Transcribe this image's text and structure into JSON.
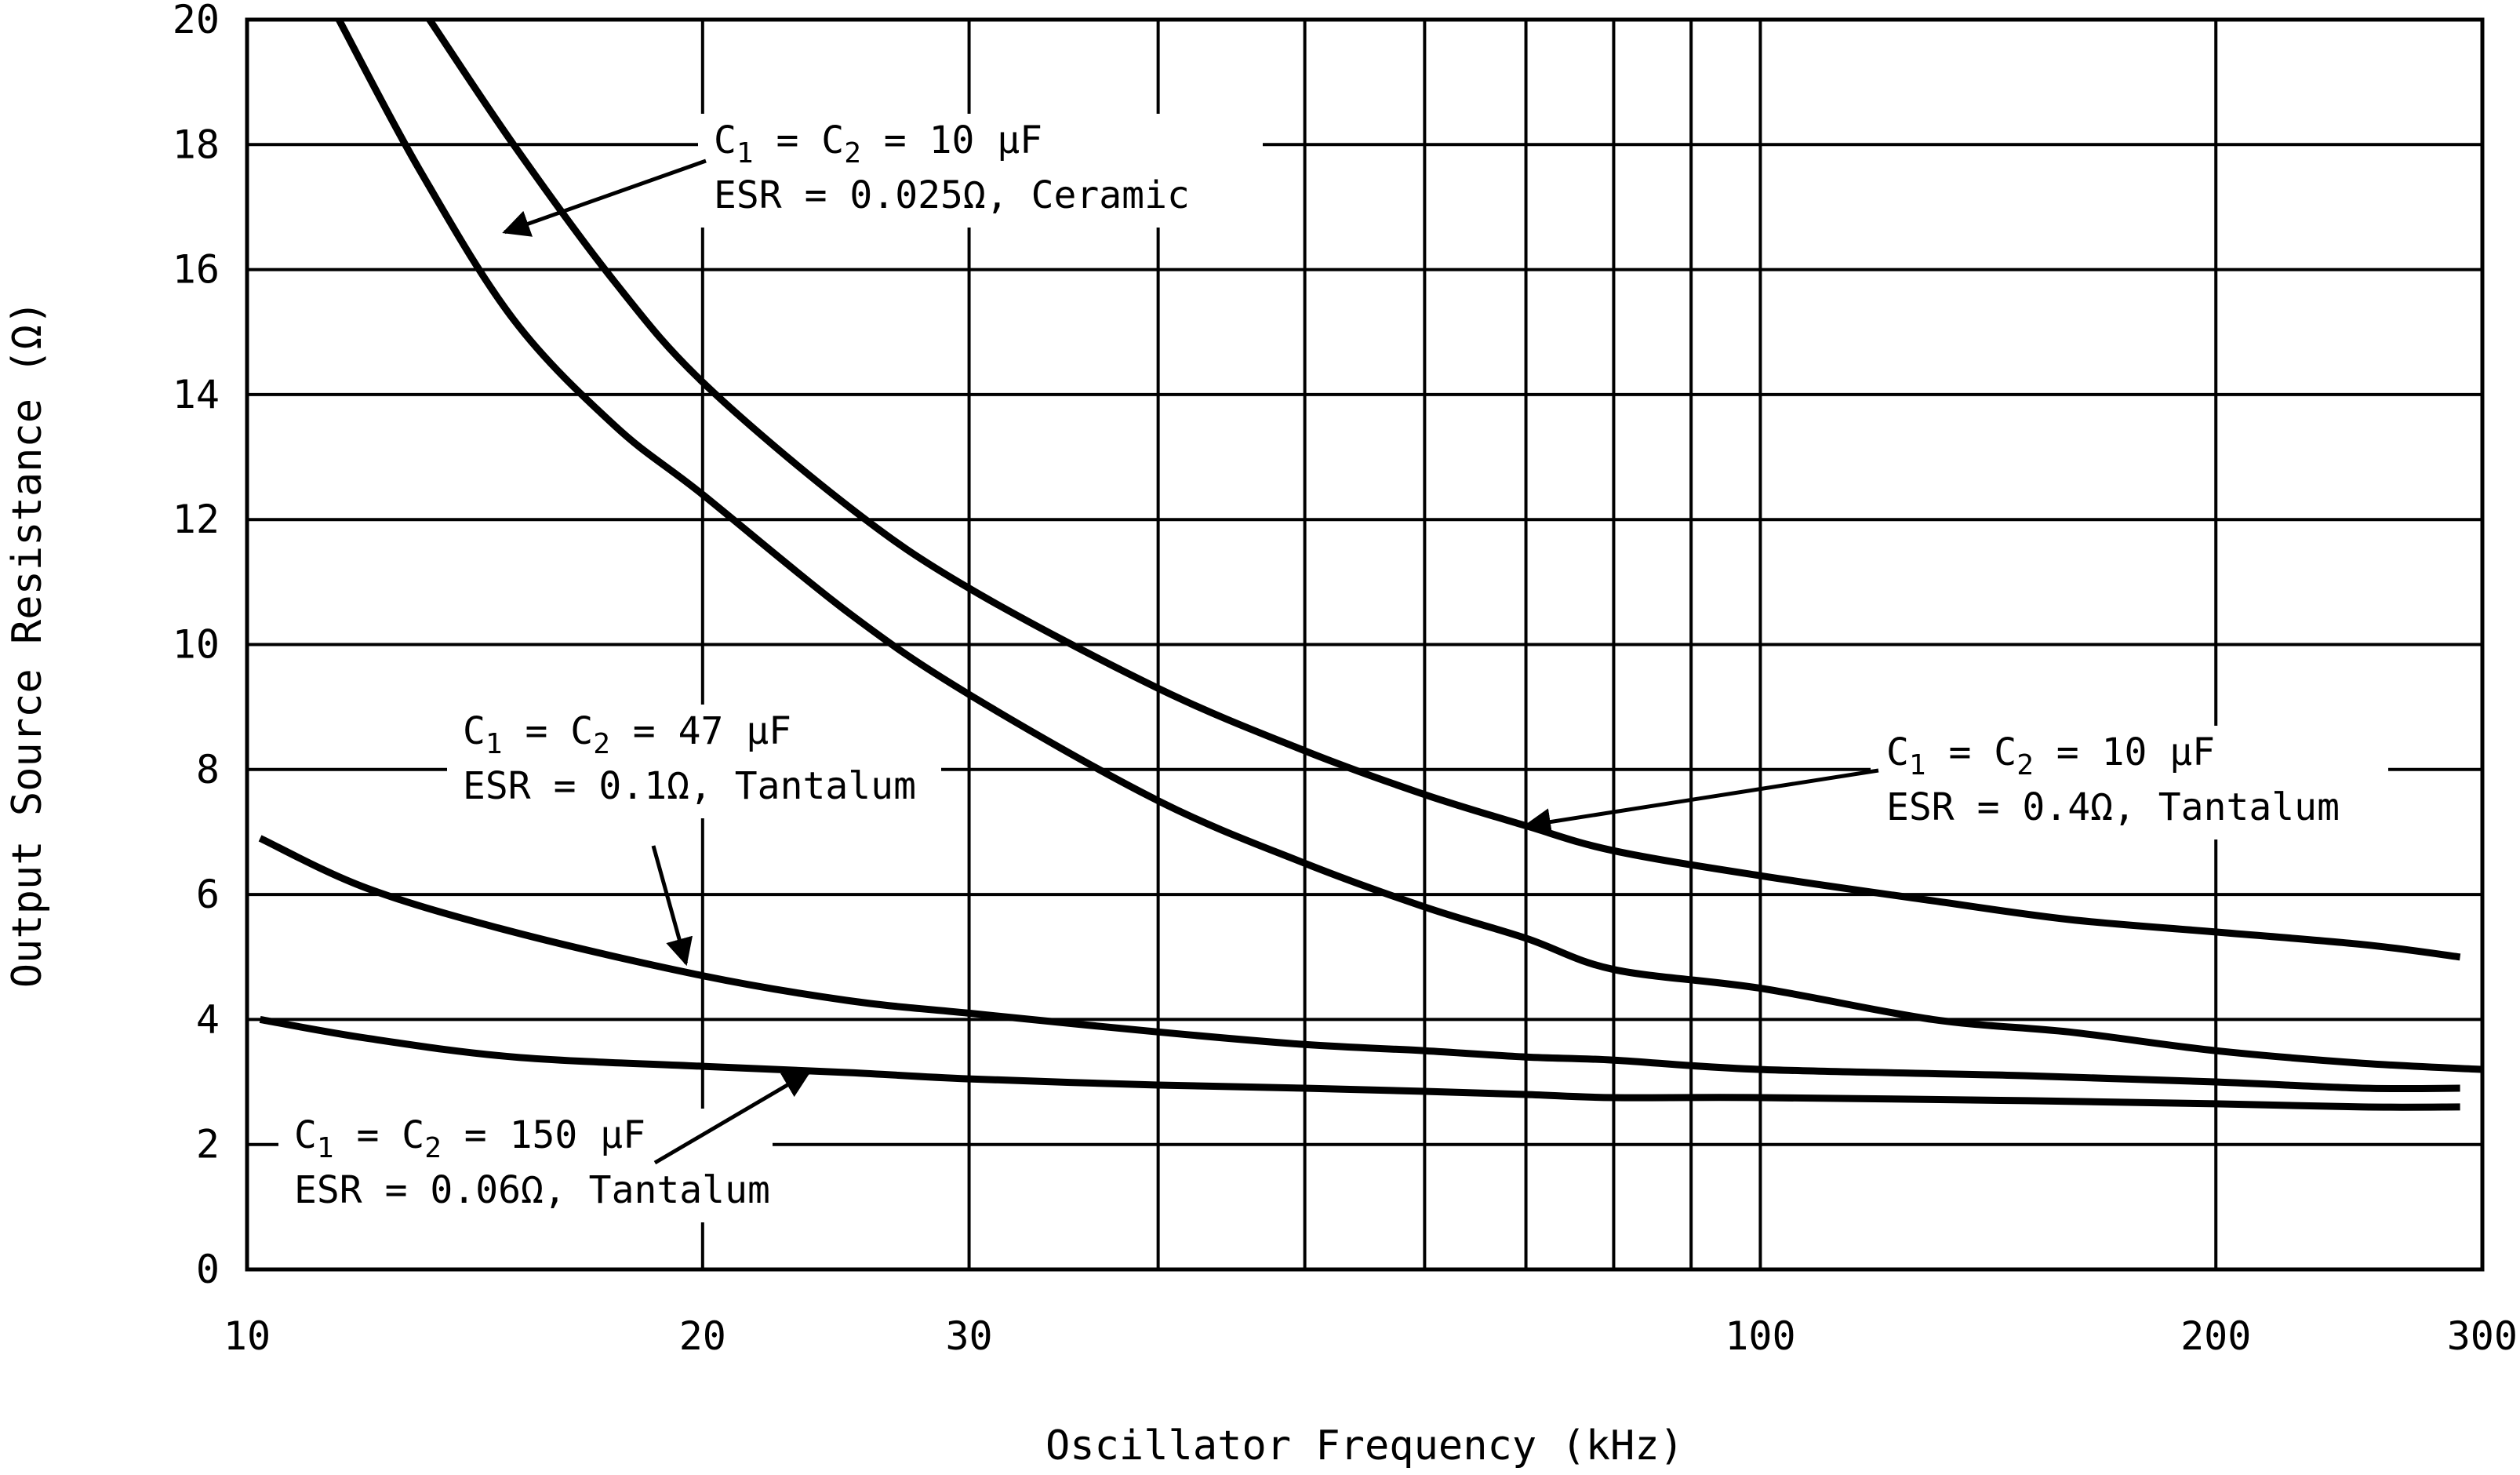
{
  "chart_data": {
    "type": "line",
    "title": "",
    "xlabel": "Oscillator Frequency (kHz)",
    "ylabel": "Output Source Resistance (Ω)",
    "x_scale": "log",
    "xlim": [
      10,
      300
    ],
    "ylim": [
      0,
      20
    ],
    "grid": true,
    "x_gridlines": [
      20,
      30,
      40,
      50,
      60,
      70,
      80,
      90,
      100,
      200
    ],
    "x_ticks": [
      {
        "value": 10,
        "label": "10"
      },
      {
        "value": 20,
        "label": "20"
      },
      {
        "value": 30,
        "label": "30"
      },
      {
        "value": 100,
        "label": "100"
      },
      {
        "value": 200,
        "label": "200"
      },
      {
        "value": 300,
        "label": "300"
      }
    ],
    "y_ticks": [
      {
        "value": 0,
        "label": "0"
      },
      {
        "value": 2,
        "label": "2"
      },
      {
        "value": 4,
        "label": "4"
      },
      {
        "value": 6,
        "label": "6"
      },
      {
        "value": 8,
        "label": "8"
      },
      {
        "value": 10,
        "label": "10"
      },
      {
        "value": 12,
        "label": "12"
      },
      {
        "value": 14,
        "label": "14"
      },
      {
        "value": 16,
        "label": "16"
      },
      {
        "value": 18,
        "label": "18"
      },
      {
        "value": 20,
        "label": "20"
      }
    ],
    "series": [
      {
        "name": "C1 = C2 = 10 µF, ESR = 0.025Ω, Ceramic",
        "x": [
          11.5,
          13,
          15,
          17.5,
          20,
          25,
          30,
          40,
          50,
          60,
          70,
          80,
          100,
          130,
          160,
          200,
          250,
          300
        ],
        "y": [
          20,
          17.6,
          15.2,
          13.5,
          12.4,
          10.5,
          9.2,
          7.5,
          6.5,
          5.8,
          5.3,
          4.8,
          4.5,
          4.0,
          3.8,
          3.5,
          3.3,
          3.2
        ]
      },
      {
        "name": "C1 = C2 = 10 µF, ESR = 0.4Ω, Tantalum",
        "x": [
          13.2,
          15,
          17.5,
          20,
          25,
          30,
          40,
          50,
          60,
          70,
          80,
          100,
          130,
          160,
          200,
          250,
          290
        ],
        "y": [
          20,
          18,
          15.8,
          14.2,
          12.2,
          10.9,
          9.3,
          8.3,
          7.6,
          7.1,
          6.7,
          6.3,
          5.9,
          5.6,
          5.4,
          5.2,
          5.0
        ]
      },
      {
        "name": "C1 = C2 = 47 µF, ESR = 0.1Ω, Tantalum",
        "x": [
          10.2,
          12,
          15,
          20,
          25,
          30,
          40,
          50,
          60,
          70,
          80,
          100,
          150,
          200,
          250,
          290
        ],
        "y": [
          6.9,
          6.1,
          5.4,
          4.7,
          4.3,
          4.1,
          3.8,
          3.6,
          3.5,
          3.4,
          3.35,
          3.2,
          3.1,
          3.0,
          2.9,
          2.9
        ]
      },
      {
        "name": "C1 = C2 = 150 µF, ESR = 0.06Ω, Tantalum",
        "x": [
          10.2,
          12,
          15,
          20,
          25,
          30,
          40,
          50,
          60,
          70,
          80,
          100,
          150,
          200,
          250,
          290
        ],
        "y": [
          4.0,
          3.7,
          3.4,
          3.25,
          3.15,
          3.05,
          2.95,
          2.9,
          2.85,
          2.8,
          2.75,
          2.75,
          2.7,
          2.65,
          2.6,
          2.6
        ]
      }
    ],
    "annotations": [
      {
        "c_label": "C",
        "c_sub": "1",
        "c2_label": " = C",
        "c2_sub": "2",
        "value": " = 10 µF",
        "esr": "ESR = 0.025Ω, Ceramic",
        "arrow_x": 14.8,
        "arrow_y": 16.6
      },
      {
        "c_label": "C",
        "c_sub": "1",
        "c2_label": " = C",
        "c2_sub": "2",
        "value": " = 10 µF",
        "esr": "ESR = 0.4Ω, Tantalum",
        "arrow_x": 70,
        "arrow_y": 7.1
      },
      {
        "c_label": "C",
        "c_sub": "1",
        "c2_label": " = C",
        "c2_sub": "2",
        "value": " = 47 µF",
        "esr": "ESR = 0.1Ω, Tantalum",
        "arrow_x": 19.5,
        "arrow_y": 4.9
      },
      {
        "c_label": "C",
        "c_sub": "1",
        "c2_label": " = C",
        "c2_sub": "2",
        "value": " = 150 µF",
        "esr": "ESR = 0.06Ω, Tantalum",
        "arrow_x": 23.5,
        "arrow_y": 3.15
      }
    ]
  }
}
